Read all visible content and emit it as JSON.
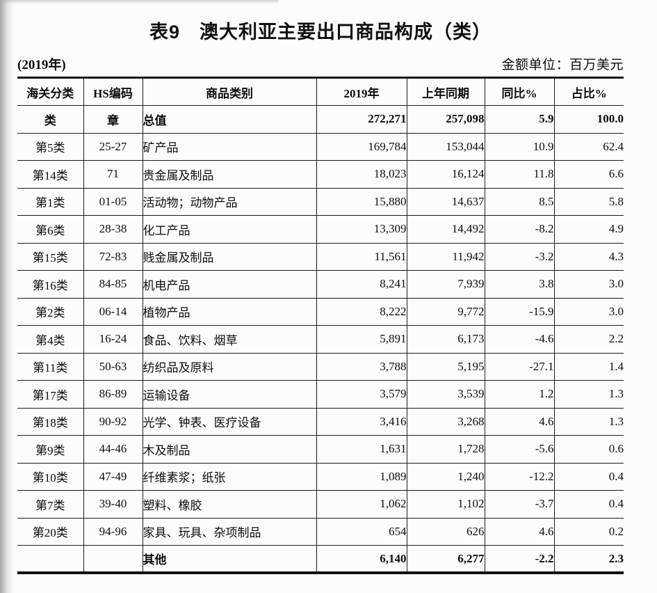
{
  "page": {
    "title": "表9　澳大利亚主要出口商品构成（类）",
    "year_note": "(2019年)",
    "unit_note": "金额单位：百万美元"
  },
  "table": {
    "headers": {
      "customs": "海关分类",
      "hs": "HS编码",
      "name": "商品类别",
      "y2019": "2019年",
      "prev": "上年同期",
      "yoy": "同比%",
      "share": "占比%"
    },
    "total_row": {
      "customs": "类",
      "hs": "章",
      "name": "总值",
      "v2019": "272,271",
      "prev": "257,098",
      "yoy": "5.9",
      "share": "100.0"
    },
    "rows": [
      {
        "customs": "第5类",
        "hs": "25-27",
        "name": "矿产品",
        "v2019": "169,784",
        "prev": "153,044",
        "yoy": "10.9",
        "share": "62.4"
      },
      {
        "customs": "第14类",
        "hs": "71",
        "name": "贵金属及制品",
        "v2019": "18,023",
        "prev": "16,124",
        "yoy": "11.8",
        "share": "6.6"
      },
      {
        "customs": "第1类",
        "hs": "01-05",
        "name": "活动物；动物产品",
        "v2019": "15,880",
        "prev": "14,637",
        "yoy": "8.5",
        "share": "5.8"
      },
      {
        "customs": "第6类",
        "hs": "28-38",
        "name": "化工产品",
        "v2019": "13,309",
        "prev": "14,492",
        "yoy": "-8.2",
        "share": "4.9"
      },
      {
        "customs": "第15类",
        "hs": "72-83",
        "name": "贱金属及制品",
        "v2019": "11,561",
        "prev": "11,942",
        "yoy": "-3.2",
        "share": "4.3"
      },
      {
        "customs": "第16类",
        "hs": "84-85",
        "name": "机电产品",
        "v2019": "8,241",
        "prev": "7,939",
        "yoy": "3.8",
        "share": "3.0"
      },
      {
        "customs": "第2类",
        "hs": "06-14",
        "name": "植物产品",
        "v2019": "8,222",
        "prev": "9,772",
        "yoy": "-15.9",
        "share": "3.0"
      },
      {
        "customs": "第4类",
        "hs": "16-24",
        "name": "食品、饮料、烟草",
        "v2019": "5,891",
        "prev": "6,173",
        "yoy": "-4.6",
        "share": "2.2"
      },
      {
        "customs": "第11类",
        "hs": "50-63",
        "name": "纺织品及原料",
        "v2019": "3,788",
        "prev": "5,195",
        "yoy": "-27.1",
        "share": "1.4"
      },
      {
        "customs": "第17类",
        "hs": "86-89",
        "name": "运输设备",
        "v2019": "3,579",
        "prev": "3,539",
        "yoy": "1.2",
        "share": "1.3"
      },
      {
        "customs": "第18类",
        "hs": "90-92",
        "name": "光学、钟表、医疗设备",
        "v2019": "3,416",
        "prev": "3,268",
        "yoy": "4.6",
        "share": "1.3"
      },
      {
        "customs": "第9类",
        "hs": "44-46",
        "name": "木及制品",
        "v2019": "1,631",
        "prev": "1,728",
        "yoy": "-5.6",
        "share": "0.6"
      },
      {
        "customs": "第10类",
        "hs": "47-49",
        "name": "纤维素浆；纸张",
        "v2019": "1,089",
        "prev": "1,240",
        "yoy": "-12.2",
        "share": "0.4"
      },
      {
        "customs": "第7类",
        "hs": "39-40",
        "name": "塑料、橡胶",
        "v2019": "1,062",
        "prev": "1,102",
        "yoy": "-3.7",
        "share": "0.4"
      },
      {
        "customs": "第20类",
        "hs": "94-96",
        "name": "家具、玩具、杂项制品",
        "v2019": "654",
        "prev": "626",
        "yoy": "4.6",
        "share": "0.2"
      }
    ],
    "other_row": {
      "customs": "",
      "hs": "",
      "name": "其他",
      "v2019": "6,140",
      "prev": "6,277",
      "yoy": "-2.2",
      "share": "2.3"
    }
  }
}
